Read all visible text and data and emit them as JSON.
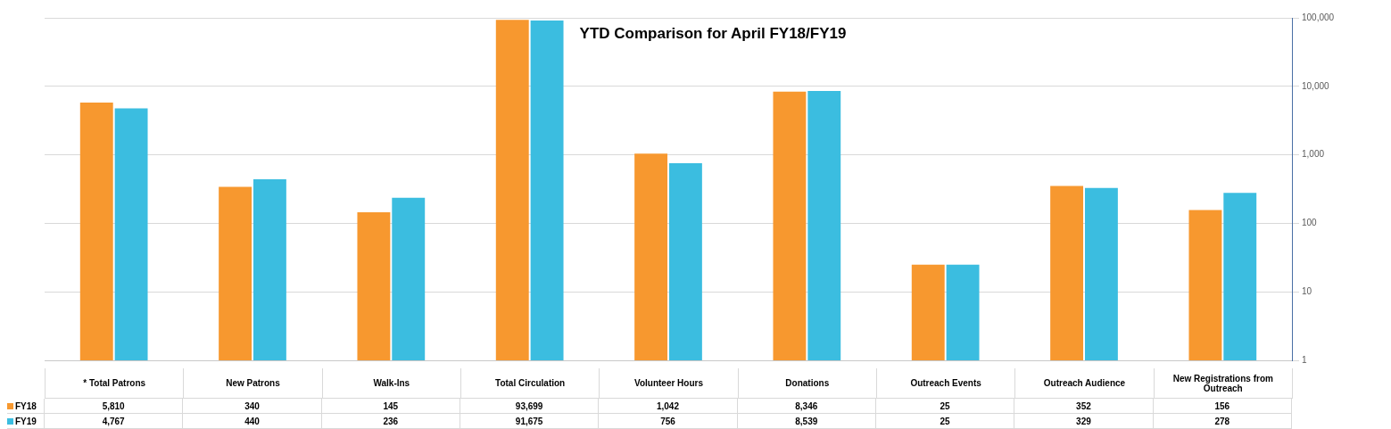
{
  "chart_data": {
    "type": "bar",
    "title": "YTD Comparison for April FY18/FY19",
    "categories": [
      "* Total Patrons",
      "New Patrons",
      "Walk-Ins",
      "Total Circulation",
      "Volunteer Hours",
      "Donations",
      "Outreach Events",
      "Outreach Audience",
      "New Registrations from Outreach"
    ],
    "series": [
      {
        "name": "FY18",
        "color": "#f7982f",
        "values": [
          5810,
          340,
          145,
          93699,
          1042,
          8346,
          25,
          352,
          156
        ],
        "value_labels": [
          "5,810",
          "340",
          "145",
          "93,699",
          "1,042",
          "8,346",
          "25",
          "352",
          "156"
        ]
      },
      {
        "name": "FY19",
        "color": "#3bbde0",
        "values": [
          4767,
          440,
          236,
          91675,
          756,
          8539,
          25,
          329,
          278
        ],
        "value_labels": [
          "4,767",
          "440",
          "236",
          "91,675",
          "756",
          "8,539",
          "25",
          "329",
          "278"
        ]
      }
    ],
    "log": "y",
    "ylim": [
      1,
      100000
    ],
    "yticks": [
      {
        "value": 1,
        "label": "1"
      },
      {
        "value": 10,
        "label": "10"
      },
      {
        "value": 100,
        "label": "100"
      },
      {
        "value": 1000,
        "label": "1,000"
      },
      {
        "value": 10000,
        "label": "10,000"
      },
      {
        "value": 100000,
        "label": "100,000"
      }
    ],
    "grid": "y",
    "legend": "bottom left"
  }
}
